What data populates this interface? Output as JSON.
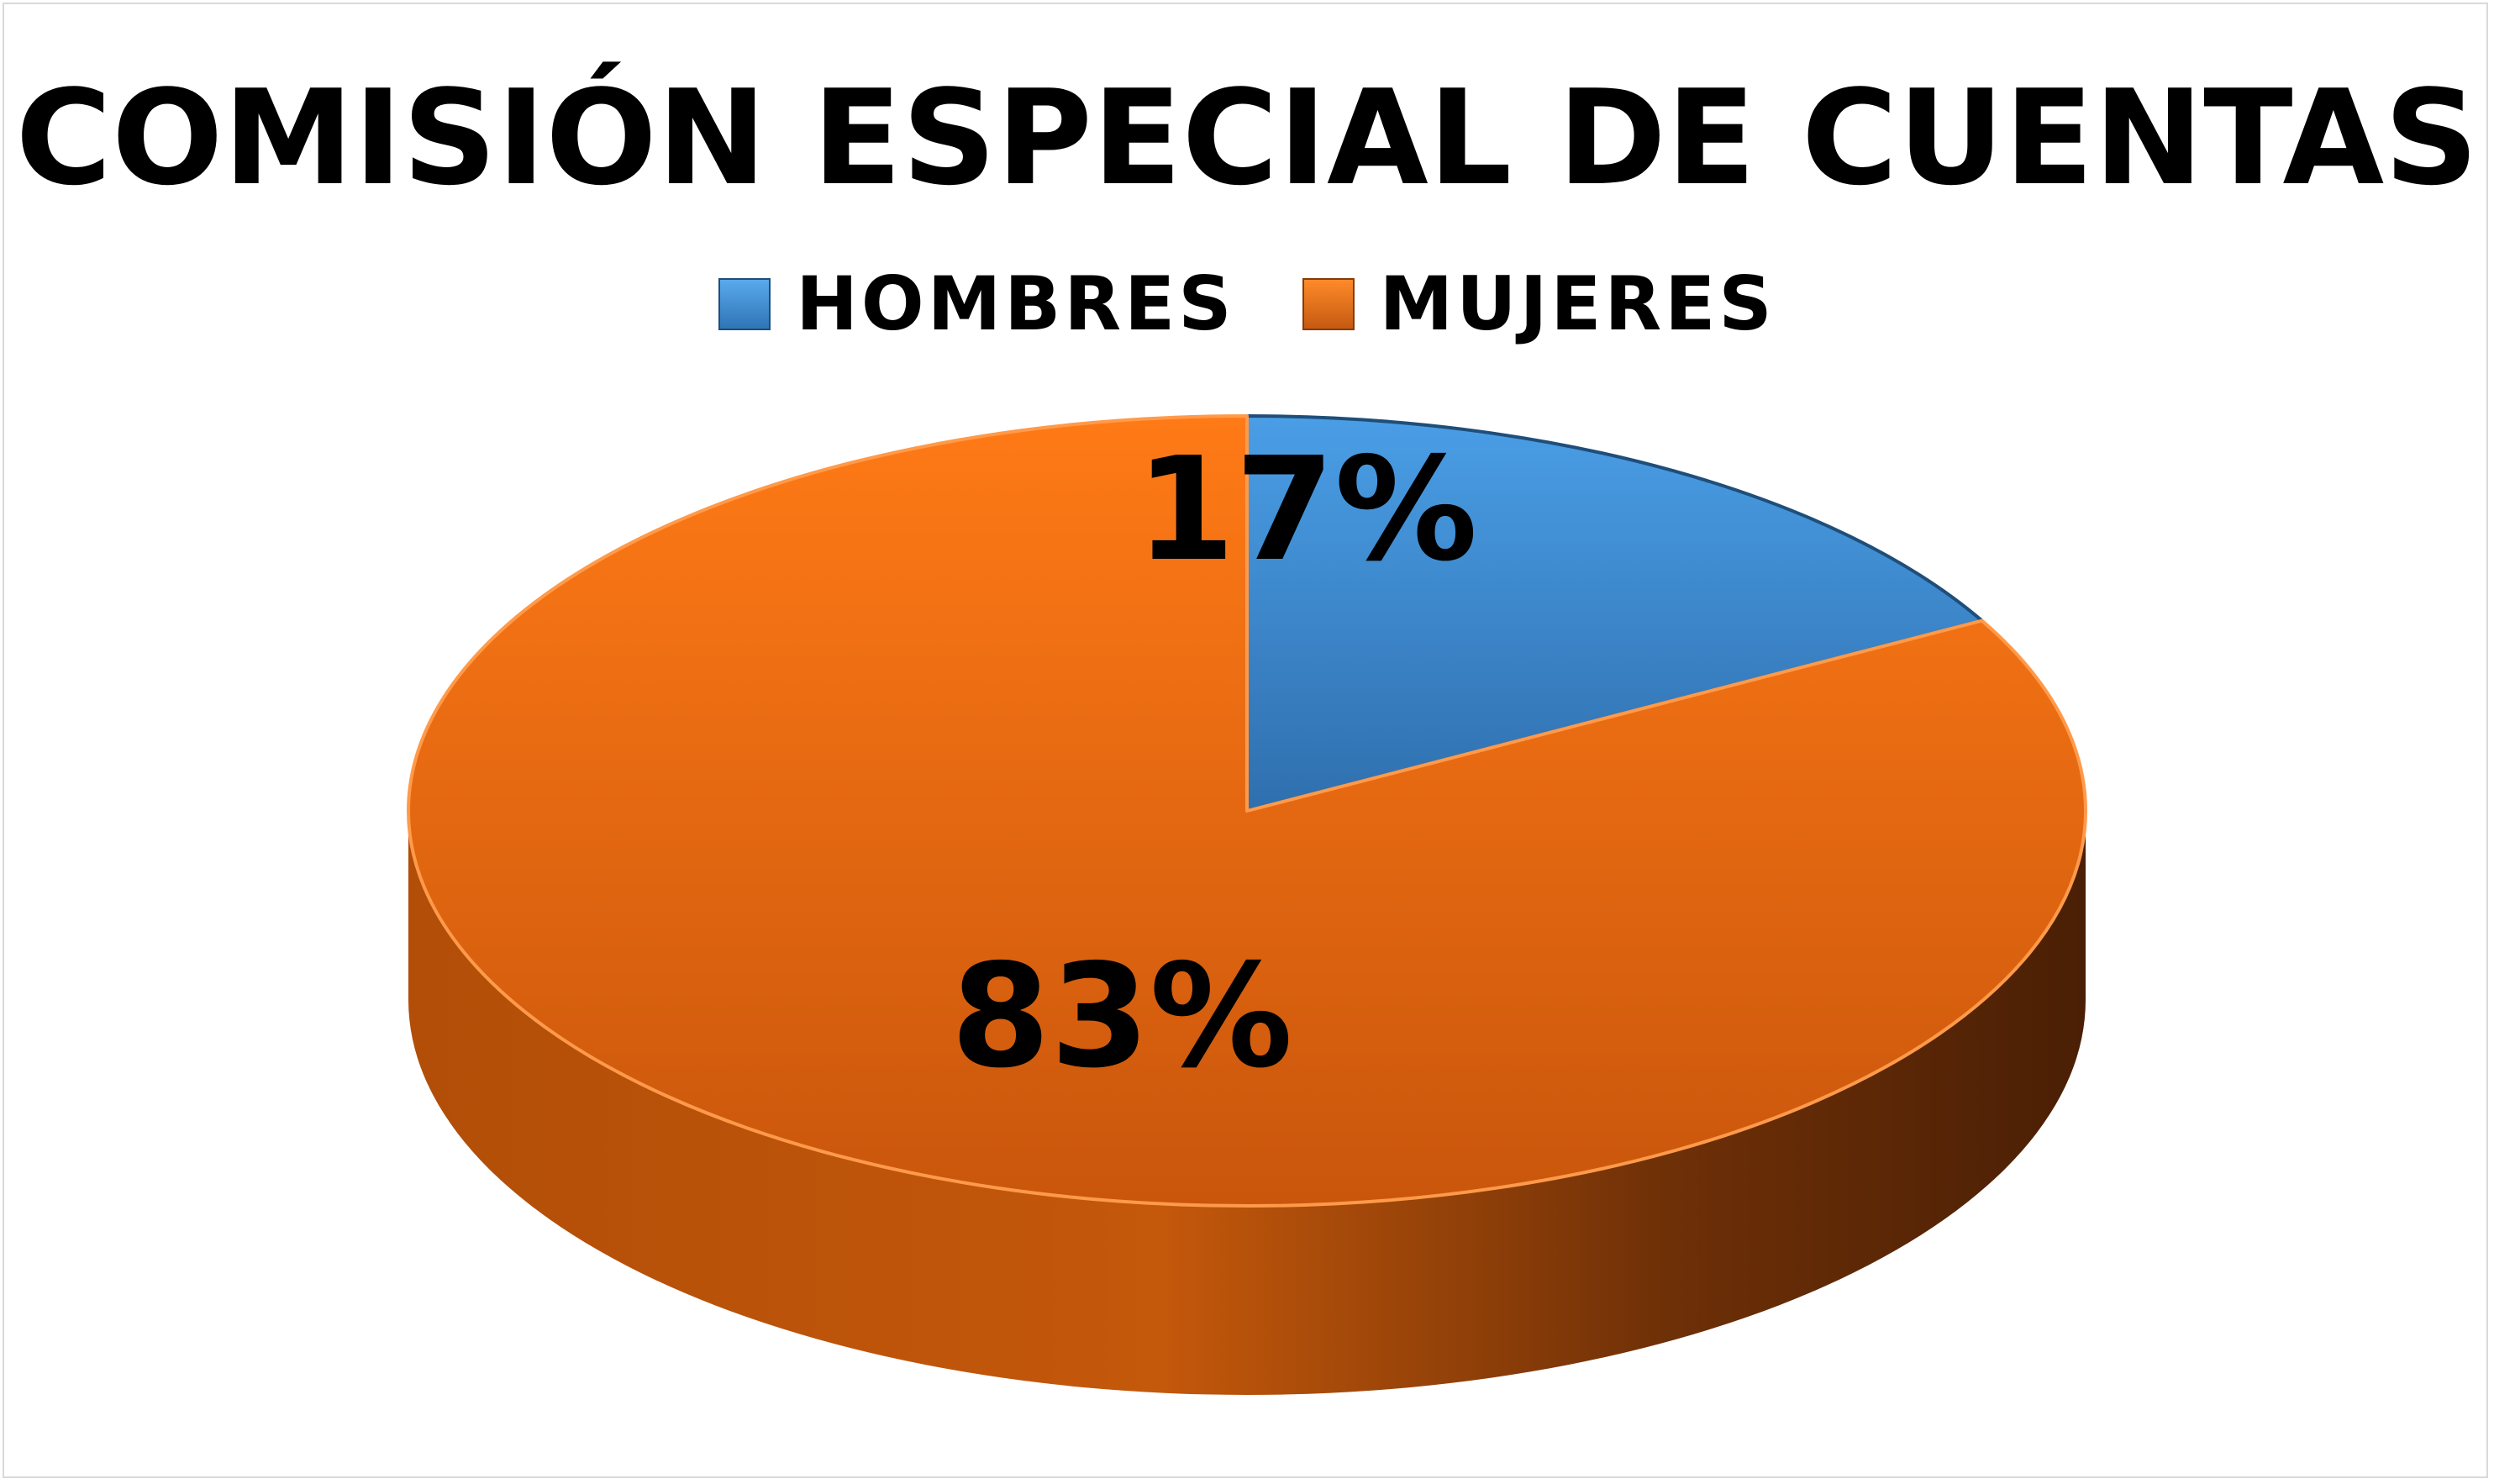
{
  "chart_data": {
    "type": "pie",
    "title": "COMISIÓN ESPECIAL DE CUENTAS",
    "categories": [
      "HOMBRES",
      "MUJERES"
    ],
    "values": [
      17,
      83
    ],
    "labels": [
      "17%",
      "83%"
    ],
    "colors": [
      "#3f8fdc",
      "#e8680f"
    ],
    "legend_position": "top",
    "style": "3d"
  }
}
